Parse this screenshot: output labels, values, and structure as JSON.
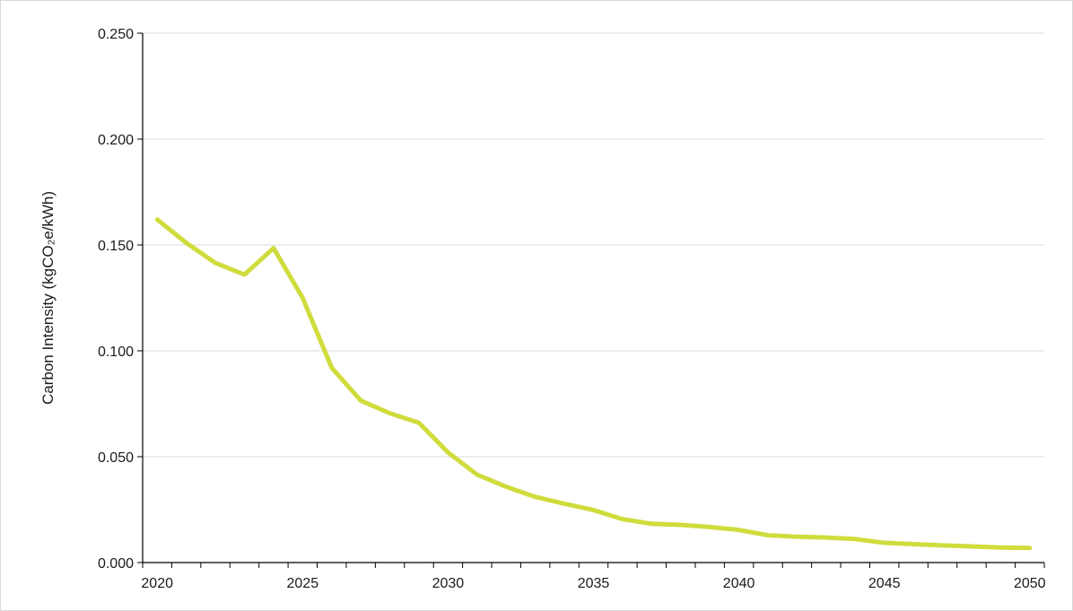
{
  "chart_data": {
    "type": "line",
    "title": "",
    "xlabel": "",
    "ylabel": "Carbon Intensity (kgCO₂e/kWh)",
    "xlim": [
      2020,
      2050
    ],
    "ylim": [
      0,
      0.25
    ],
    "x_tick_labels": [
      "2020",
      "2025",
      "2030",
      "2035",
      "2040",
      "2045",
      "2050"
    ],
    "y_tick_labels": [
      "0.000",
      "0.050",
      "0.100",
      "0.150",
      "0.200",
      "0.250"
    ],
    "grid": "horizontal",
    "legend": "none",
    "series": [
      {
        "color": "#cfdc3c",
        "x": [
          2020,
          2021,
          2022,
          2023,
          2024,
          2025,
          2026,
          2027,
          2028,
          2029,
          2030,
          2031,
          2032,
          2033,
          2034,
          2035,
          2036,
          2037,
          2038,
          2039,
          2040,
          2041,
          2042,
          2043,
          2044,
          2045,
          2046,
          2047,
          2048,
          2049,
          2050
        ],
        "values": [
          0.162,
          0.151,
          0.1415,
          0.136,
          0.1485,
          0.125,
          0.092,
          0.0765,
          0.0705,
          0.066,
          0.052,
          0.0415,
          0.0358,
          0.031,
          0.0278,
          0.0248,
          0.0205,
          0.0183,
          0.0178,
          0.0168,
          0.0154,
          0.0129,
          0.0122,
          0.0118,
          0.0111,
          0.0093,
          0.0087,
          0.0081,
          0.0076,
          0.0071,
          0.0069
        ]
      }
    ]
  }
}
